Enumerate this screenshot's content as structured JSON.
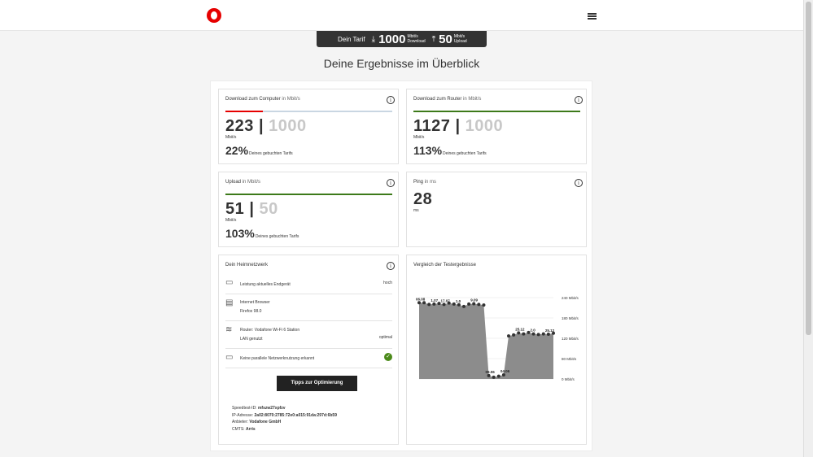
{
  "header": {
    "logo": "vodafone-logo",
    "menu": "menu-icon"
  },
  "tarif": {
    "label": "Dein Tarif",
    "download_value": "1000",
    "download_unit": "Mbit/s",
    "download_label": "Download",
    "upload_value": "50",
    "upload_unit": "Mbit/s",
    "upload_label": "Upload"
  },
  "headline": "Deine Ergebnisse im Überblick",
  "cards": {
    "download_computer": {
      "title": "Download zum Computer",
      "unit_suffix": "in Mbit/s",
      "value": "223",
      "separator": "|",
      "max": "1000",
      "unit": "Mbit/s",
      "percent": "22%",
      "percent_label": "Deines gebuchten Tarifs",
      "fill_fraction": 0.223,
      "fill_color": "#e60000"
    },
    "download_router": {
      "title": "Download zum Router",
      "unit_suffix": "in Mbit/s",
      "value": "1127",
      "separator": "|",
      "max": "1000",
      "unit": "Mbit/s",
      "percent": "113%",
      "percent_label": "Deines gebuchten Tarifs",
      "fill_fraction": 1.0,
      "fill_color": "#3d7a1a"
    },
    "upload": {
      "title": "Upload",
      "unit_suffix": "in Mbit/s",
      "value": "51",
      "separator": "|",
      "max": "50",
      "unit": "Mbit/s",
      "percent": "103%",
      "percent_label": "Deines gebuchten Tarifs",
      "fill_fraction": 1.0,
      "fill_color": "#3d7a1a"
    },
    "ping": {
      "title": "Ping",
      "unit_suffix": "in ms",
      "value": "28",
      "unit": "ms"
    }
  },
  "heimnetz": {
    "title": "Dein Heimnetzwerk",
    "rows": [
      {
        "icon": "laptop-icon",
        "line1": "Leistung aktuelles Endgerät",
        "line2": "",
        "status": "hoch"
      },
      {
        "icon": "browser-icon",
        "line1": "Internet Browser",
        "line2": "Firefox 98.0",
        "status": ""
      },
      {
        "icon": "router-icon",
        "line1": "Router: Vodafone Wi-Fi 6 Station",
        "line2": "LAN genutzt",
        "status": "optimal"
      },
      {
        "icon": "devices-icon",
        "line1": "Keine parallele Netzwerknutzung erkannt",
        "line2": "",
        "status": ""
      }
    ],
    "button": "Tipps zur Optimierung",
    "meta": {
      "speedtest_label": "Speedtest-ID:",
      "speedtest_value": "mfszw27xpfzv",
      "ip_label": "IP-Adresse:",
      "ip_value": "2a02:8070:2785:72e0:a015:91da:297d:6b59",
      "provider_label": "Anbieter:",
      "provider_value": "Vodafone GmbH",
      "cmts_label": "CMTS:",
      "cmts_value": "Arris"
    }
  },
  "chart_title": "Vergleich der Testergebnisse",
  "chart_data": {
    "type": "area",
    "y_unit": "Mbit/s",
    "ylim": [
      0,
      240
    ],
    "yticks": [
      "240 Mbit/s",
      "180 Mbit/s",
      "120 Mbit/s",
      "80 Mbit/s",
      "0 Mbit/s"
    ],
    "grid": true,
    "values": [
      225,
      225,
      220,
      221,
      223,
      220,
      224,
      221,
      219,
      214,
      221,
      222,
      220,
      218,
      10,
      5,
      8,
      12,
      127,
      130,
      136,
      133,
      137,
      133,
      131,
      133,
      132,
      135
    ],
    "point_labels": [
      {
        "index": 0,
        "text": "06.08"
      },
      {
        "index": 3,
        "text": "1.07"
      },
      {
        "index": 5,
        "text": "17.07"
      },
      {
        "index": 8,
        "text": "1.0"
      },
      {
        "index": 11,
        "text": "9.09"
      },
      {
        "index": 14,
        "text": "09.06"
      },
      {
        "index": 17,
        "text": "04.06"
      },
      {
        "index": 20,
        "text": "25.12"
      },
      {
        "index": 23,
        "text": "2.0"
      },
      {
        "index": 26,
        "text": "25.12"
      }
    ],
    "fill_color": "#8c8c8c",
    "dot_color": "#333333"
  }
}
